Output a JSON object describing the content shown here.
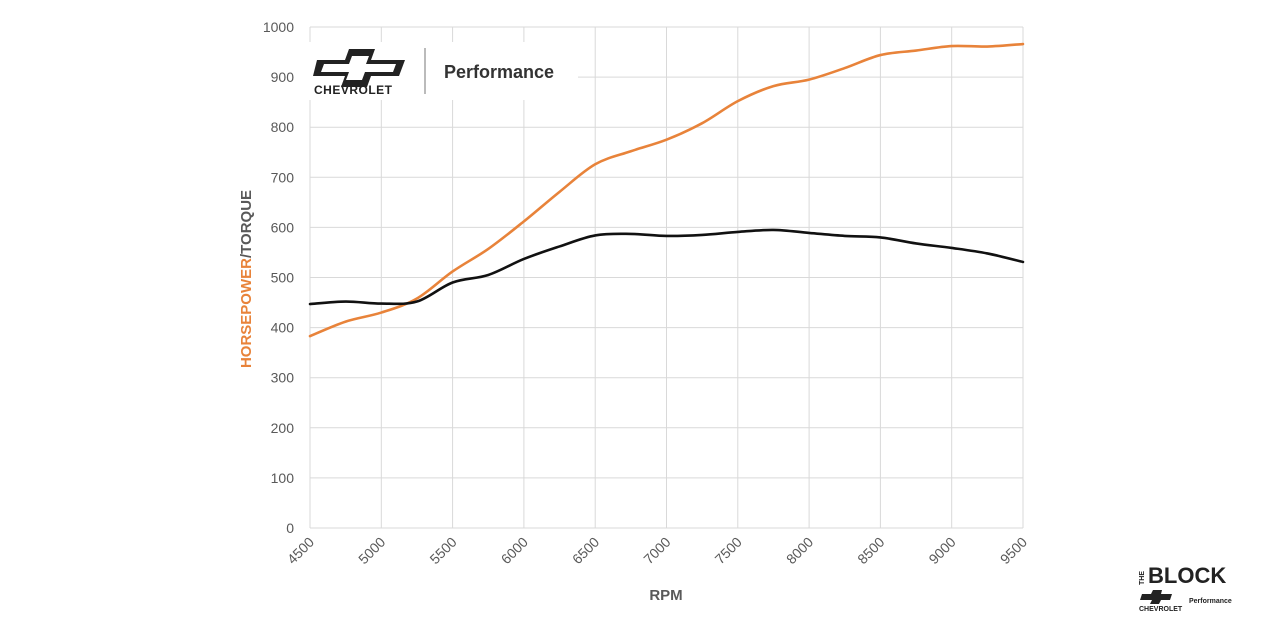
{
  "chart_data": {
    "type": "line",
    "xlabel": "RPM",
    "ylabel_part1": "HORSEPOWER",
    "ylabel_part2": "/TORQUE",
    "xlim": [
      4500,
      9500
    ],
    "ylim": [
      0,
      1000
    ],
    "x_ticks": [
      4500,
      5000,
      5500,
      6000,
      6500,
      7000,
      7500,
      8000,
      8500,
      9000,
      9500
    ],
    "y_ticks": [
      0,
      100,
      200,
      300,
      400,
      500,
      600,
      700,
      800,
      900,
      1000
    ],
    "grid": true,
    "series": [
      {
        "color": "#E8833A",
        "x": [
          4500,
          4750,
          5000,
          5250,
          5500,
          5750,
          6000,
          6250,
          6500,
          6750,
          7000,
          7250,
          7500,
          7750,
          8000,
          8250,
          8500,
          8750,
          9000,
          9250,
          9500
        ],
        "y": [
          383,
          412,
          430,
          458,
          512,
          557,
          612,
          671,
          726,
          752,
          775,
          808,
          852,
          882,
          895,
          918,
          944,
          953,
          962,
          961,
          966
        ]
      },
      {
        "color": "#111111",
        "x": [
          4500,
          4750,
          5000,
          5250,
          5500,
          5750,
          6000,
          6250,
          6500,
          6750,
          7000,
          7250,
          7500,
          7750,
          8000,
          8250,
          8500,
          8750,
          9000,
          9250,
          9500
        ],
        "y": [
          447,
          452,
          448,
          452,
          490,
          505,
          537,
          562,
          584,
          587,
          583,
          585,
          591,
          595,
          589,
          583,
          580,
          568,
          559,
          548,
          531
        ]
      }
    ]
  },
  "brand": {
    "logo_text": "CHEVROLET",
    "divider_text": "Performance"
  },
  "corner_logo": {
    "the": "THE",
    "block": "BLOCK",
    "chevrolet": "CHEVROLET",
    "performance": "Performance"
  },
  "colors": {
    "horsepower": "#E8833A",
    "torque": "#111111",
    "grid": "#D9D9D9",
    "tick_text": "#595959"
  }
}
